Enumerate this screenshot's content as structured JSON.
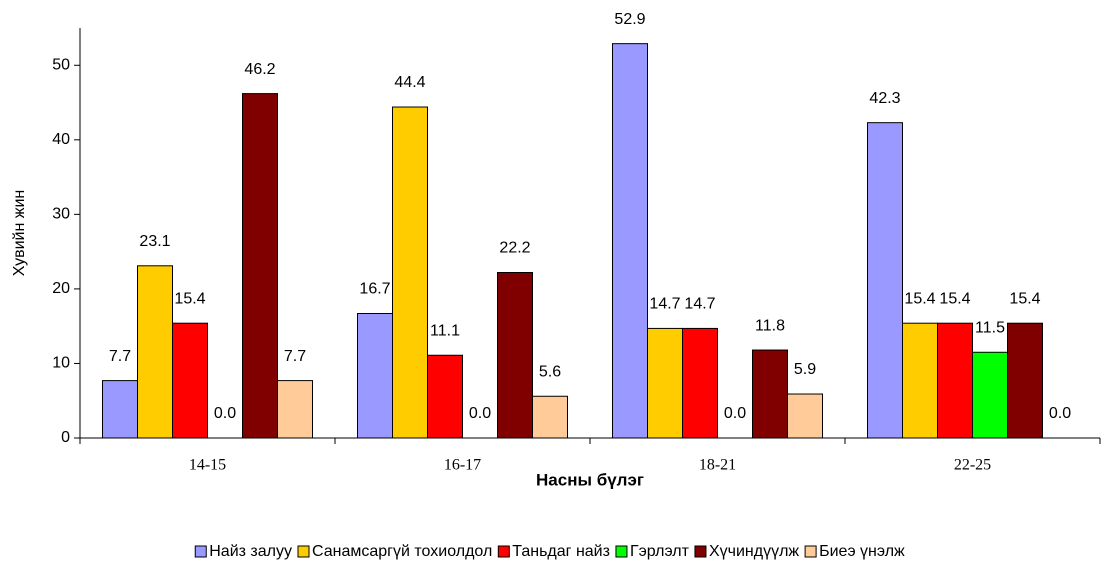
{
  "chart_data": {
    "type": "bar",
    "x_label": "Насны бүлэг",
    "y_label": "Хувийн жин",
    "categories": [
      "14-15",
      "16-17",
      "18-21",
      "22-25"
    ],
    "series": [
      {
        "name": "Найз залуу",
        "color": "#9999ff",
        "values": [
          7.7,
          16.7,
          52.9,
          42.3
        ],
        "value_labels": [
          "7.7",
          "16.7",
          "52.9",
          "42.3"
        ]
      },
      {
        "name": "Санамсаргүй тохиолдол",
        "color": "#ffcc00",
        "values": [
          23.1,
          44.4,
          14.7,
          15.4
        ],
        "value_labels": [
          "23.1",
          "44.4",
          "14.7",
          "15.4"
        ]
      },
      {
        "name": "Таньдаг найз",
        "color": "#ff0000",
        "values": [
          15.4,
          11.1,
          14.7,
          15.4
        ],
        "value_labels": [
          "15.4",
          "11.1",
          "14.7",
          "15.4"
        ]
      },
      {
        "name": "Гэрлэлт",
        "color": "#00ff00",
        "values": [
          0,
          0,
          0,
          11.5
        ],
        "value_labels": [
          "0.0",
          "0.0",
          "0.0",
          "11.5"
        ]
      },
      {
        "name": "Хүчиндүүлж",
        "color": "#800000",
        "values": [
          46.2,
          22.2,
          11.8,
          15.4
        ],
        "value_labels": [
          "46.2",
          "22.2",
          "11.8",
          "15.4"
        ]
      },
      {
        "name": "Биеэ үнэлж",
        "color": "#ffcc99",
        "values": [
          7.7,
          5.6,
          5.9,
          0
        ],
        "value_labels": [
          "7.7",
          "5.6",
          "5.9",
          "0.0"
        ]
      }
    ],
    "ylim": [
      0,
      55
    ],
    "yticks": [
      0,
      10,
      20,
      30,
      40,
      50
    ],
    "grid": false,
    "legend": "bottom"
  }
}
